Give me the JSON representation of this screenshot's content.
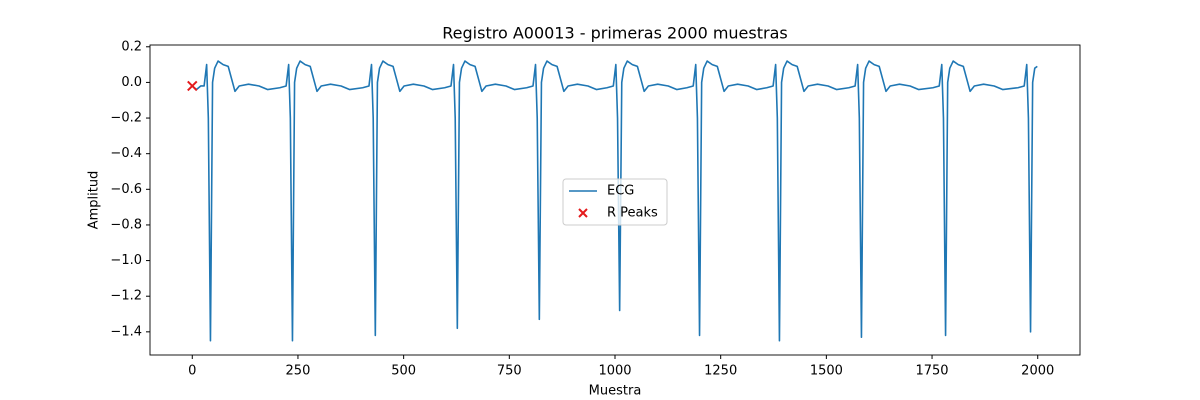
{
  "chart_data": {
    "type": "line",
    "title": "Registro A00013 - primeras 2000 muestras",
    "x_label": "Muestra",
    "y_label": "Amplitud",
    "xlim": [
      -100,
      2100
    ],
    "ylim": [
      -1.53,
      0.21
    ],
    "xticks": [
      0,
      250,
      500,
      750,
      1000,
      1250,
      1500,
      1750,
      2000
    ],
    "yticks": [
      0.2,
      {
        "value": 0,
        "label": "0.0"
      },
      {
        "value": -0.2,
        "label": "−0.2"
      },
      {
        "value": -0.4,
        "label": "−0.4"
      },
      {
        "value": -0.6,
        "label": "−0.6"
      },
      {
        "value": -0.8,
        "label": "−0.8"
      },
      {
        "value": -1.0,
        "label": "−1.0"
      },
      {
        "value": -1.2,
        "label": "−1.2"
      },
      {
        "value": -1.4,
        "label": "−1.4"
      }
    ],
    "legend": "center",
    "series": [
      {
        "name": "ECG",
        "type": "line",
        "color": "#1f77b4",
        "x": [
          0,
          10,
          20,
          28,
          34,
          38,
          43,
          48,
          53,
          61,
          73,
          85,
          93,
          101,
          111,
          133,
          158,
          178,
          207,
          222,
          228,
          232,
          237,
          242,
          247,
          255,
          267,
          279,
          287,
          295,
          305,
          327,
          352,
          372,
          403,
          418,
          424,
          428,
          433,
          438,
          443,
          451,
          463,
          475,
          483,
          491,
          501,
          523,
          548,
          568,
          597,
          612,
          618,
          622,
          627,
          632,
          637,
          645,
          657,
          669,
          677,
          685,
          695,
          717,
          742,
          762,
          791,
          806,
          812,
          816,
          821,
          826,
          831,
          839,
          851,
          863,
          871,
          879,
          889,
          911,
          936,
          956,
          981,
          996,
          1002,
          1006,
          1011,
          1016,
          1021,
          1029,
          1041,
          1053,
          1061,
          1069,
          1079,
          1101,
          1126,
          1146,
          1170,
          1185,
          1191,
          1195,
          1200,
          1205,
          1210,
          1218,
          1230,
          1242,
          1250,
          1258,
          1268,
          1290,
          1315,
          1335,
          1359,
          1374,
          1380,
          1384,
          1389,
          1394,
          1399,
          1407,
          1419,
          1431,
          1439,
          1447,
          1457,
          1479,
          1504,
          1524,
          1553,
          1568,
          1574,
          1578,
          1583,
          1588,
          1593,
          1601,
          1613,
          1625,
          1633,
          1641,
          1651,
          1673,
          1698,
          1718,
          1752,
          1767,
          1773,
          1777,
          1782,
          1787,
          1792,
          1800,
          1812,
          1824,
          1832,
          1840,
          1850,
          1872,
          1897,
          1917,
          1953,
          1968,
          1974,
          1978,
          1983,
          1988,
          1993,
          1999
        ],
        "values": [
          -0.02,
          -0.04,
          -0.02,
          -0.02,
          0.1,
          -0.2,
          -1.45,
          0.0,
          0.08,
          0.12,
          0.1,
          0.09,
          0.02,
          -0.05,
          -0.02,
          -0.01,
          -0.02,
          -0.04,
          -0.03,
          -0.02,
          0.1,
          -0.2,
          -1.45,
          0.0,
          0.08,
          0.12,
          0.1,
          0.09,
          0.02,
          -0.05,
          -0.02,
          -0.01,
          -0.02,
          -0.04,
          -0.03,
          -0.02,
          0.1,
          -0.2,
          -1.42,
          0.0,
          0.08,
          0.12,
          0.1,
          0.09,
          0.02,
          -0.05,
          -0.02,
          -0.01,
          -0.02,
          -0.04,
          -0.03,
          -0.02,
          0.1,
          -0.2,
          -1.38,
          0.0,
          0.08,
          0.12,
          0.1,
          0.09,
          0.02,
          -0.05,
          -0.02,
          -0.01,
          -0.02,
          -0.04,
          -0.03,
          -0.02,
          0.1,
          -0.2,
          -1.33,
          0.0,
          0.08,
          0.12,
          0.1,
          0.09,
          0.02,
          -0.05,
          -0.02,
          -0.01,
          -0.02,
          -0.04,
          -0.03,
          -0.02,
          0.1,
          -0.2,
          -1.28,
          0.0,
          0.08,
          0.12,
          0.1,
          0.09,
          0.02,
          -0.05,
          -0.02,
          -0.01,
          -0.02,
          -0.04,
          -0.03,
          -0.02,
          0.1,
          -0.2,
          -1.42,
          0.0,
          0.08,
          0.12,
          0.1,
          0.09,
          0.02,
          -0.05,
          -0.02,
          -0.01,
          -0.02,
          -0.04,
          -0.03,
          -0.02,
          0.1,
          -0.2,
          -1.45,
          0.0,
          0.08,
          0.12,
          0.1,
          0.09,
          0.02,
          -0.05,
          -0.02,
          -0.01,
          -0.02,
          -0.04,
          -0.03,
          -0.02,
          0.1,
          -0.2,
          -1.43,
          0.0,
          0.08,
          0.12,
          0.1,
          0.09,
          0.02,
          -0.05,
          -0.02,
          -0.01,
          -0.02,
          -0.04,
          -0.03,
          -0.02,
          0.1,
          -0.2,
          -1.42,
          0.0,
          0.08,
          0.12,
          0.1,
          0.09,
          0.02,
          -0.05,
          -0.02,
          -0.01,
          -0.02,
          -0.04,
          -0.03,
          -0.02,
          0.1,
          -0.2,
          -1.4,
          0.0,
          0.08,
          0.09
        ]
      },
      {
        "name": "R Peaks",
        "type": "scatter",
        "color": "#e41a1c",
        "x": [
          0
        ],
        "values": [
          -0.02
        ]
      }
    ]
  }
}
